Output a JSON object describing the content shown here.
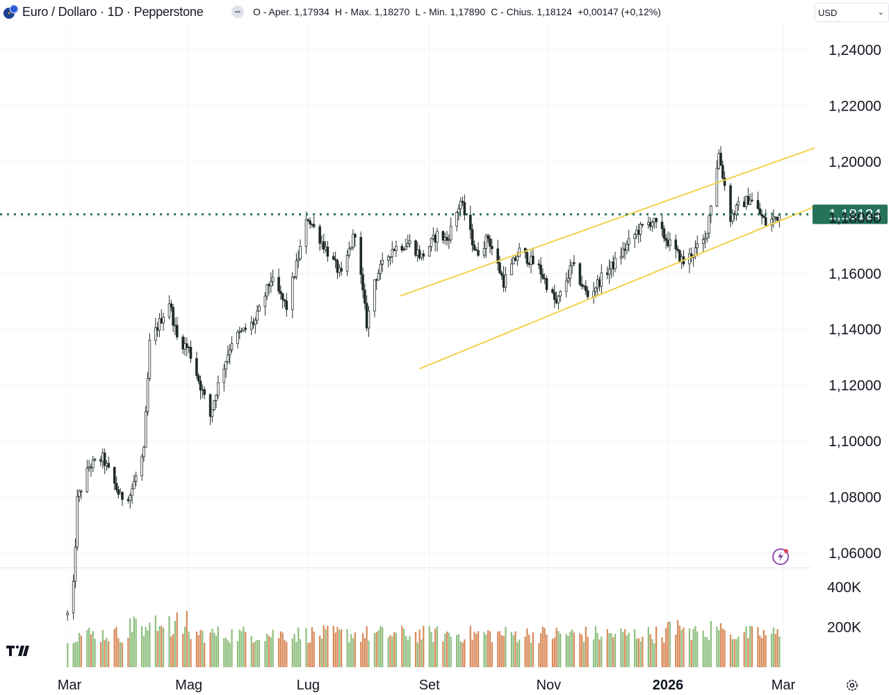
{
  "header": {
    "title": "Euro / Dollaro · 1D · Pepperstone",
    "open_label": "O - Aper.",
    "open": "1,17934",
    "high_label": "H - Max.",
    "high": "1,18270",
    "low_label": "L - Min.",
    "low": "1,17890",
    "close_label": "C - Chius.",
    "close": "1,18124",
    "change": "+0,00147 (+0,12%)",
    "currency": "USD"
  },
  "icons": {
    "logo": "euro-dollar-flag-icon",
    "hide": "minus-icon",
    "chevron": "chevron-down-icon",
    "alert": "lightning-alert-icon",
    "settings": "gear-icon"
  },
  "colors": {
    "up": "#8fbf80",
    "down": "#d98a5a",
    "candle": "#1f2a24",
    "last_price": "#26725a",
    "channel": "#f2d24b",
    "grid": "#f0f3fa"
  },
  "chart_data": {
    "type": "candlestick",
    "price_axis": {
      "ticks": [
        "1,24000",
        "1,22000",
        "1,20000",
        "1,18000",
        "1,16000",
        "1,14000",
        "1,12000",
        "1,10000",
        "1,08000",
        "1,06000"
      ],
      "tick_values": [
        1.24,
        1.22,
        1.2,
        1.18,
        1.16,
        1.14,
        1.12,
        1.1,
        1.08,
        1.06
      ],
      "ylim": [
        1.052,
        1.256
      ],
      "last_price": 1.18124,
      "last_price_label": "1,18124"
    },
    "volume_axis": {
      "ticks": [
        "400K",
        "200K"
      ],
      "tick_values": [
        400000,
        200000
      ]
    },
    "time_axis": {
      "labels": [
        "Mar",
        "Mag",
        "Lug",
        "Set",
        "Nov",
        "2026",
        "Mar"
      ],
      "dates": [
        "2025-03-01",
        "2025-05-01",
        "2025-07-01",
        "2025-09-01",
        "2025-11-01",
        "2026-01-01",
        "2026-03-01"
      ],
      "bold": [
        false,
        false,
        false,
        false,
        false,
        true,
        false
      ]
    },
    "series_path": [
      [
        "2025-02-28",
        1.038
      ],
      [
        "2025-03-03",
        1.048
      ],
      [
        "2025-03-05",
        1.079
      ],
      [
        "2025-03-11",
        1.091
      ],
      [
        "2025-03-18",
        1.094
      ],
      [
        "2025-03-27",
        1.08
      ],
      [
        "2025-04-01",
        1.081
      ],
      [
        "2025-04-08",
        1.096
      ],
      [
        "2025-04-11",
        1.135
      ],
      [
        "2025-04-21",
        1.15
      ],
      [
        "2025-04-25",
        1.137
      ],
      [
        "2025-05-01",
        1.133
      ],
      [
        "2025-05-12",
        1.109
      ],
      [
        "2025-05-15",
        1.118
      ],
      [
        "2025-05-23",
        1.136
      ],
      [
        "2025-06-04",
        1.143
      ],
      [
        "2025-06-12",
        1.158
      ],
      [
        "2025-06-20",
        1.148
      ],
      [
        "2025-06-30",
        1.178
      ],
      [
        "2025-07-01",
        1.18
      ],
      [
        "2025-07-10",
        1.169
      ],
      [
        "2025-07-18",
        1.159
      ],
      [
        "2025-07-25",
        1.175
      ],
      [
        "2025-07-31",
        1.142
      ],
      [
        "2025-08-04",
        1.158
      ],
      [
        "2025-08-13",
        1.169
      ],
      [
        "2025-08-22",
        1.171
      ],
      [
        "2025-08-28",
        1.166
      ],
      [
        "2025-09-05",
        1.174
      ],
      [
        "2025-09-10",
        1.172
      ],
      [
        "2025-09-17",
        1.186
      ],
      [
        "2025-09-25",
        1.167
      ],
      [
        "2025-10-01",
        1.173
      ],
      [
        "2025-10-09",
        1.157
      ],
      [
        "2025-10-17",
        1.168
      ],
      [
        "2025-10-27",
        1.162
      ],
      [
        "2025-11-05",
        1.149
      ],
      [
        "2025-11-13",
        1.163
      ],
      [
        "2025-11-21",
        1.152
      ],
      [
        "2025-12-01",
        1.161
      ],
      [
        "2025-12-05",
        1.164
      ],
      [
        "2025-12-16",
        1.175
      ],
      [
        "2025-12-24",
        1.179
      ],
      [
        "2026-01-09",
        1.164
      ],
      [
        "2026-01-20",
        1.172
      ],
      [
        "2026-01-27",
        1.203
      ],
      [
        "2026-02-02",
        1.18
      ],
      [
        "2026-02-06",
        1.184
      ],
      [
        "2026-02-12",
        1.187
      ],
      [
        "2026-02-20",
        1.178
      ],
      [
        "2026-02-27",
        1.181
      ]
    ],
    "channel_lines": [
      {
        "name": "upper",
        "from": [
          "2025-08-17",
          1.152
        ],
        "to": [
          "2026-03-17",
          1.205
        ]
      },
      {
        "name": "lower",
        "from": [
          "2025-08-27",
          1.126
        ],
        "to": [
          "2026-03-17",
          1.184
        ]
      }
    ],
    "grid": true
  }
}
